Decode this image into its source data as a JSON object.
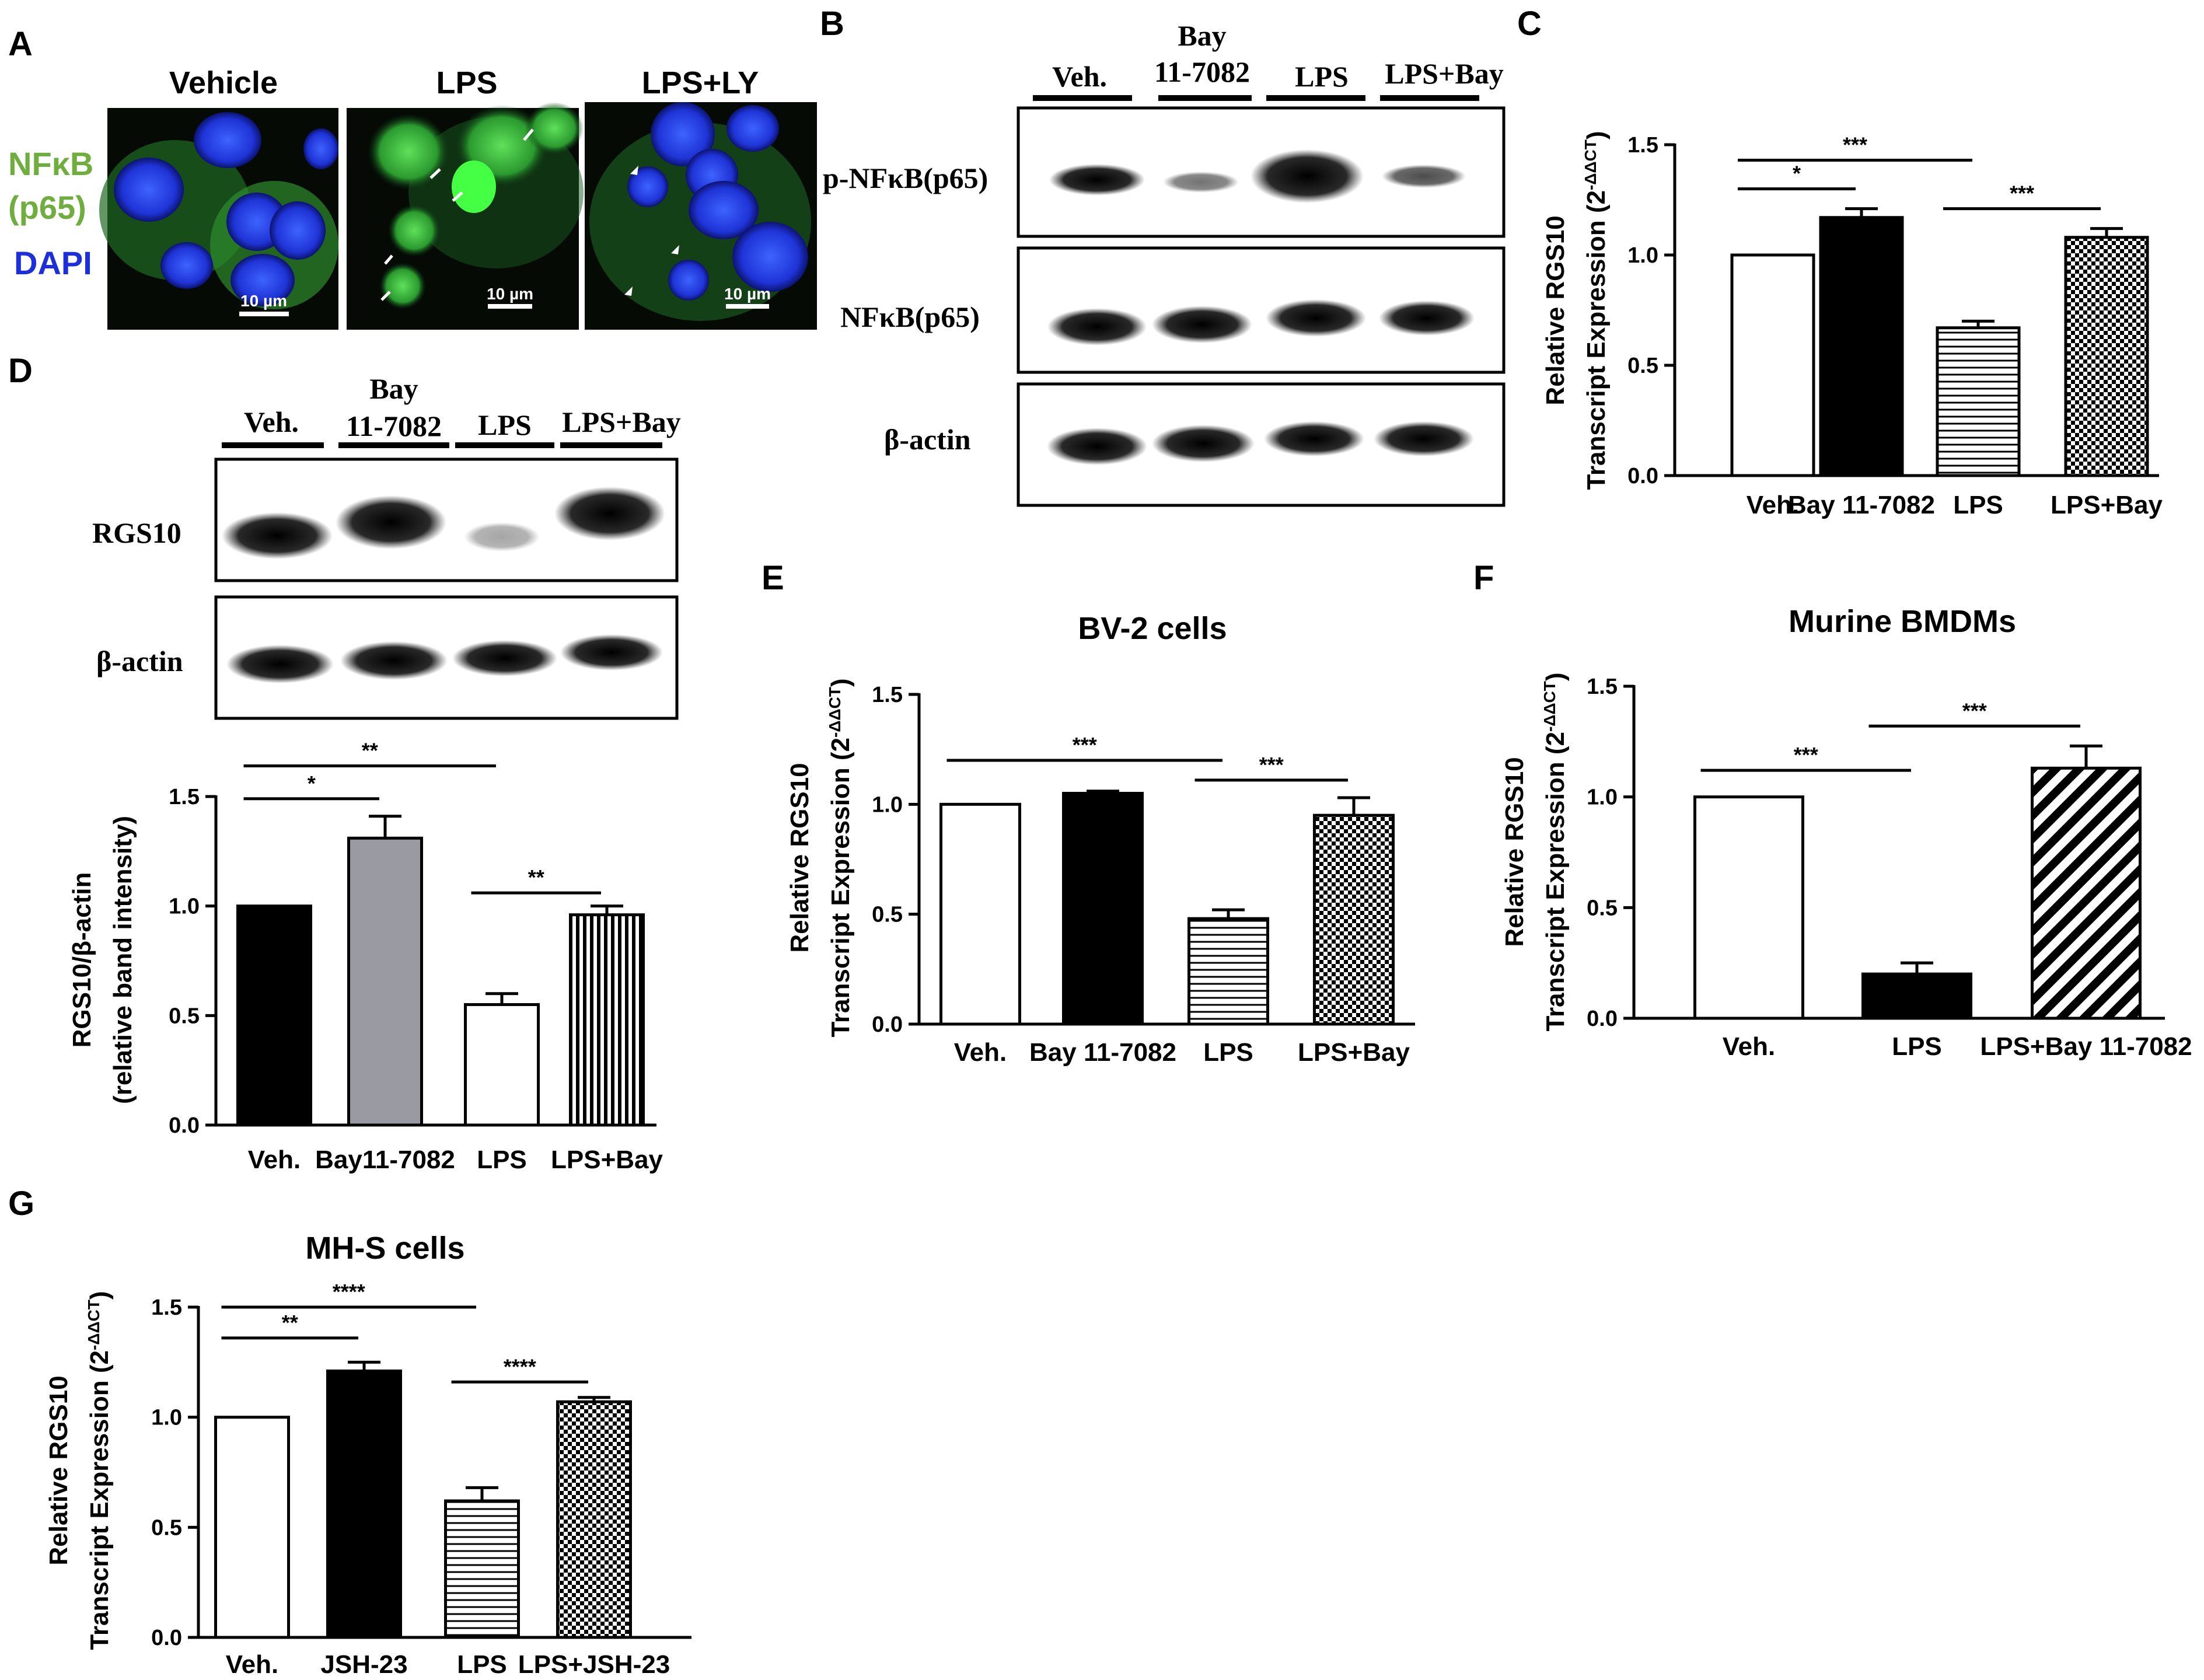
{
  "colors": {
    "nfkb_green": "#6fae3e",
    "dapi_blue": "#1d2fd8",
    "bar_black": "#000000",
    "bar_gray": "#9a9aa2"
  },
  "panels": {
    "A": {
      "letter": "A",
      "stain1_line1": "NFκB",
      "stain1_line2": "(p65)",
      "stain2": "DAPI",
      "columns": [
        "Vehicle",
        "LPS",
        "LPS+LY"
      ],
      "scale_bar": "10 µm"
    },
    "B": {
      "letter": "B",
      "lanes": [
        "Veh.",
        "Bay\n11-7082",
        "LPS",
        "LPS+Bay"
      ],
      "rows": [
        "p-NFκB(p65)",
        "NFκB(p65)",
        "β-actin"
      ]
    },
    "D": {
      "letter": "D",
      "lanes": [
        "Veh.",
        "Bay\n11-7082",
        "LPS",
        "LPS+Bay"
      ],
      "rows": [
        "RGS10",
        "β-actin"
      ]
    },
    "E": {
      "letter": "E"
    },
    "F": {
      "letter": "F"
    },
    "G": {
      "letter": "G"
    },
    "C": {
      "letter": "C"
    }
  },
  "chart_data": [
    {
      "id": "C",
      "type": "bar",
      "title": "",
      "ylabel_line1": "Relative RGS10",
      "ylabel_line2": "Transcript Expression (2",
      "ylabel_sup": "-ΔΔCT",
      "ylim": [
        0,
        1.5
      ],
      "ticks": [
        "0.0",
        "0.5",
        "1.0",
        "1.5"
      ],
      "categories": [
        "Veh.",
        "Bay 11-7082",
        "LPS",
        "LPS+Bay"
      ],
      "values": [
        1.0,
        1.17,
        0.67,
        1.08
      ],
      "errors": [
        0,
        0.04,
        0.03,
        0.04
      ],
      "fills": [
        "white",
        "black",
        "hlines",
        "checker"
      ],
      "sig": [
        {
          "from": 0,
          "to": 1,
          "label": "*",
          "y": 1.3
        },
        {
          "from": 0,
          "to": 2,
          "label": "***",
          "y": 1.43
        },
        {
          "from": 2,
          "to": 3,
          "label": "***",
          "y": 1.21
        }
      ]
    },
    {
      "id": "D",
      "type": "bar",
      "title": "",
      "ylabel_line1": "RGS10/β-actin",
      "ylabel_line2": "(relative band intensity)",
      "ylim": [
        0,
        1.5
      ],
      "ticks": [
        "0.0",
        "0.5",
        "1.0",
        "1.5"
      ],
      "categories": [
        "Veh.",
        "Bay11-7082",
        "LPS",
        "LPS+Bay"
      ],
      "values": [
        1.0,
        1.31,
        0.55,
        0.96
      ],
      "errors": [
        0,
        0.1,
        0.05,
        0.04
      ],
      "fills": [
        "black",
        "gray",
        "white",
        "vlines"
      ],
      "sig": [
        {
          "from": 0,
          "to": 1,
          "label": "*",
          "y": 1.49
        },
        {
          "from": 0,
          "to": 2,
          "label": "**",
          "y": 1.64
        },
        {
          "from": 2,
          "to": 3,
          "label": "**",
          "y": 1.06
        }
      ]
    },
    {
      "id": "E",
      "type": "bar",
      "title": "BV-2 cells",
      "ylabel_line1": "Relative RGS10",
      "ylabel_line2": "Transcript Expression (2",
      "ylabel_sup": "-ΔΔCT",
      "ylim": [
        0,
        1.5
      ],
      "ticks": [
        "0.0",
        "0.5",
        "1.0",
        "1.5"
      ],
      "categories": [
        "Veh.",
        "Bay 11-7082",
        "LPS",
        "LPS+Bay"
      ],
      "values": [
        1.0,
        1.05,
        0.48,
        0.95
      ],
      "errors": [
        0,
        0.01,
        0.04,
        0.08
      ],
      "fills": [
        "white",
        "black",
        "hlines",
        "checker"
      ],
      "sig": [
        {
          "from": 0,
          "to": 2,
          "label": "***",
          "y": 1.2
        },
        {
          "from": 2,
          "to": 3,
          "label": "***",
          "y": 1.11
        }
      ]
    },
    {
      "id": "F",
      "type": "bar",
      "title": "Murine BMDMs",
      "ylabel_line1": "Relative RGS10",
      "ylabel_line2": "Transcript Expression (2",
      "ylabel_sup": "-ΔΔCT",
      "ylim": [
        0,
        1.5
      ],
      "ticks": [
        "0.0",
        "0.5",
        "1.0",
        "1.5"
      ],
      "categories": [
        "Veh.",
        "LPS",
        "LPS+Bay 11-7082"
      ],
      "values": [
        1.0,
        0.2,
        1.13
      ],
      "errors": [
        0,
        0.05,
        0.1
      ],
      "fills": [
        "white",
        "black",
        "diag"
      ],
      "sig": [
        {
          "from": 0,
          "to": 1,
          "label": "***",
          "y": 1.12
        },
        {
          "from": 1,
          "to": 2,
          "label": "***",
          "y": 1.32
        }
      ]
    },
    {
      "id": "G",
      "type": "bar",
      "title": "MH-S cells",
      "ylabel_line1": "Relative RGS10",
      "ylabel_line2": "Transcript Expression (2",
      "ylabel_sup": "-ΔΔCT",
      "ylim": [
        0,
        1.5
      ],
      "ticks": [
        "0.0",
        "0.5",
        "1.0",
        "1.5"
      ],
      "categories": [
        "Veh.",
        "JSH-23",
        "LPS",
        "LPS+JSH-23"
      ],
      "values": [
        1.0,
        1.21,
        0.62,
        1.07
      ],
      "errors": [
        0,
        0.04,
        0.06,
        0.02
      ],
      "fills": [
        "white",
        "black",
        "hlines",
        "checker"
      ],
      "sig": [
        {
          "from": 0,
          "to": 1,
          "label": "**",
          "y": 1.36
        },
        {
          "from": 0,
          "to": 2,
          "label": "****",
          "y": 1.5
        },
        {
          "from": 2,
          "to": 3,
          "label": "****",
          "y": 1.16
        }
      ]
    }
  ]
}
